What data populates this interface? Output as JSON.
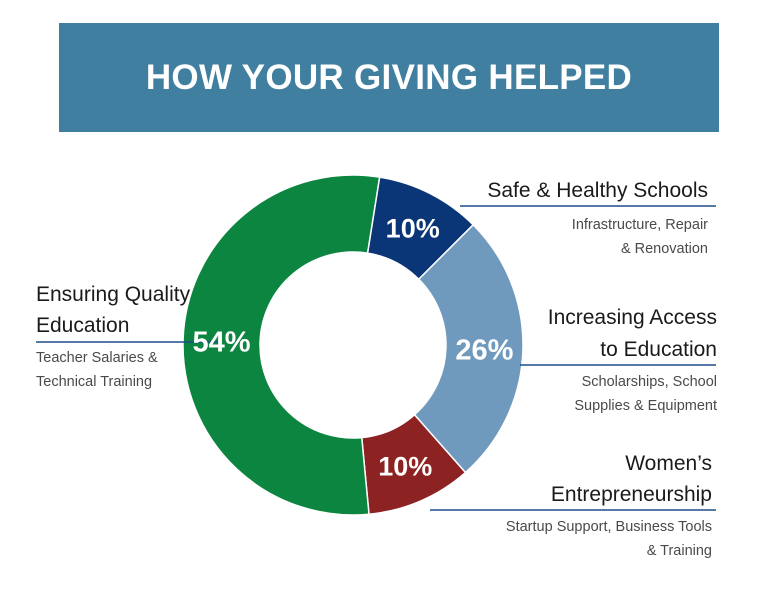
{
  "banner": {
    "title": "HOW YOUR GIVING HELPED"
  },
  "chart_data": {
    "type": "pie",
    "unit": "%",
    "slices": [
      {
        "name": "Safe & Healthy Schools",
        "title_lines": [
          "Safe & Healthy Schools"
        ],
        "description_lines": [
          "Infrastructure, Repair",
          "& Renovation"
        ],
        "value": 10,
        "label": "10%",
        "color": "#0a3576"
      },
      {
        "name": "Increasing Access to Education",
        "title_lines": [
          "Increasing Access",
          "to Education"
        ],
        "description_lines": [
          "Scholarships, School",
          "Supplies & Equipment"
        ],
        "value": 26,
        "label": "26%",
        "color": "#6f9abd"
      },
      {
        "name": "Women's Entrepreneurship",
        "title_lines": [
          "Women’s",
          "Entrepreneurship"
        ],
        "description_lines": [
          "Startup Support, Business Tools",
          "& Training"
        ],
        "value": 10,
        "label": "10%",
        "color": "#8c2221"
      },
      {
        "name": "Ensuring Quality Education",
        "title_lines": [
          "Ensuring Quality",
          "Education"
        ],
        "description_lines": [
          "Teacher Salaries &",
          "Technical Training"
        ],
        "value": 54,
        "label": "54%",
        "color": "#0b853f"
      }
    ]
  }
}
